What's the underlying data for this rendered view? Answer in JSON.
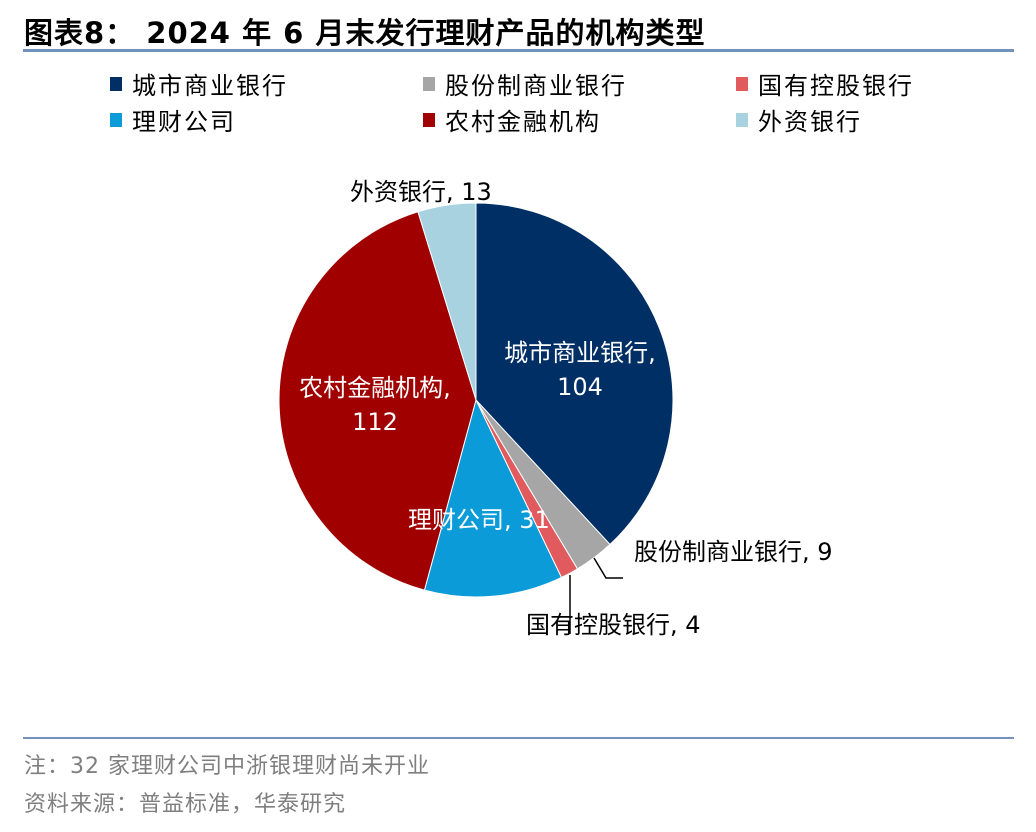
{
  "title": "图表8：  2024 年 6 月末发行理财产品的机构类型",
  "chart_data": {
    "type": "pie",
    "title": "2024 年 6 月末发行理财产品的机构类型",
    "categories": [
      "城市商业银行",
      "股份制商业银行",
      "国有控股银行",
      "理财公司",
      "农村金融机构",
      "外资银行"
    ],
    "values": [
      104,
      9,
      4,
      31,
      112,
      13
    ],
    "colors": [
      "#002F65",
      "#A6A6A6",
      "#E05A5E",
      "#0B9BD8",
      "#A00000",
      "#A8D2E0"
    ],
    "start": "12 o'clock, clockwise",
    "legend_position": "top",
    "label_separator": ", "
  },
  "notes": {
    "note": "注：32 家理财公司中浙银理财尚未开业",
    "source": "资料来源：普益标准，华泰研究"
  }
}
